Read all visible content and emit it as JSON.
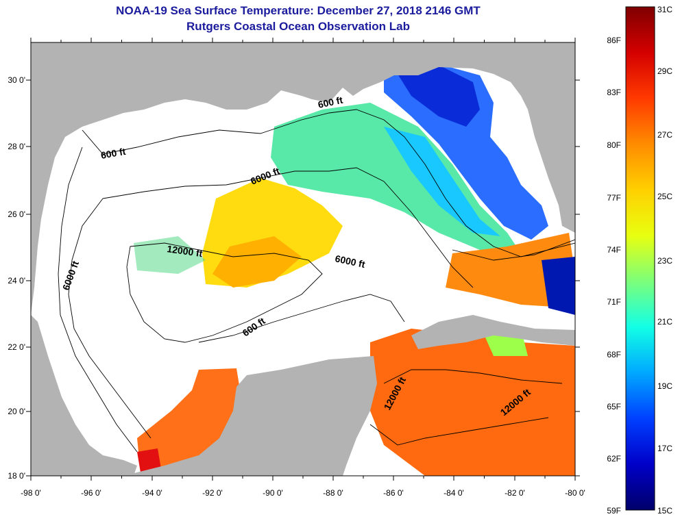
{
  "title": "NOAA-19 Sea Surface Temperature:  December 27, 2018 2146 GMT",
  "subtitle": "Rutgers Coastal Ocean Observation Lab",
  "lat_labels": [
    "30 0'",
    "28 0'",
    "26 0'",
    "24 0'",
    "22 0'",
    "20 0'",
    "18 0'"
  ],
  "lon_labels": [
    "-98 0'",
    "-96 0'",
    "-94 0'",
    "-92 0'",
    "-90 0'",
    "-88 0'",
    "-86 0'",
    "-84 0'",
    "-82 0'",
    "-80 0'"
  ],
  "contour_labels": [
    "600 ft",
    "600 ft",
    "6000 ft",
    "12000 ft",
    "6000 ft",
    "6000 ft",
    "600 ft",
    "12000 ft",
    "12000 ft"
  ],
  "colorbar": {
    "celsius_labels": [
      "31C",
      "29C",
      "27C",
      "25C",
      "23C",
      "21C",
      "19C",
      "17C",
      "15C"
    ],
    "fahrenheit_labels": [
      "86F",
      "83F",
      "80F",
      "77F",
      "74F",
      "71F",
      "68F",
      "65F",
      "62F",
      "59F"
    ],
    "colors": [
      "#7f0000",
      "#d40000",
      "#ff3a00",
      "#ff8c00",
      "#ffd000",
      "#e8ff10",
      "#7cff7a",
      "#12ffe6",
      "#00a8ff",
      "#0040ff",
      "#0000c8",
      "#00006a"
    ]
  },
  "colors": {
    "land": "#b3b3b3",
    "cloud": "#ffffff",
    "title": "#1b1b9e"
  }
}
